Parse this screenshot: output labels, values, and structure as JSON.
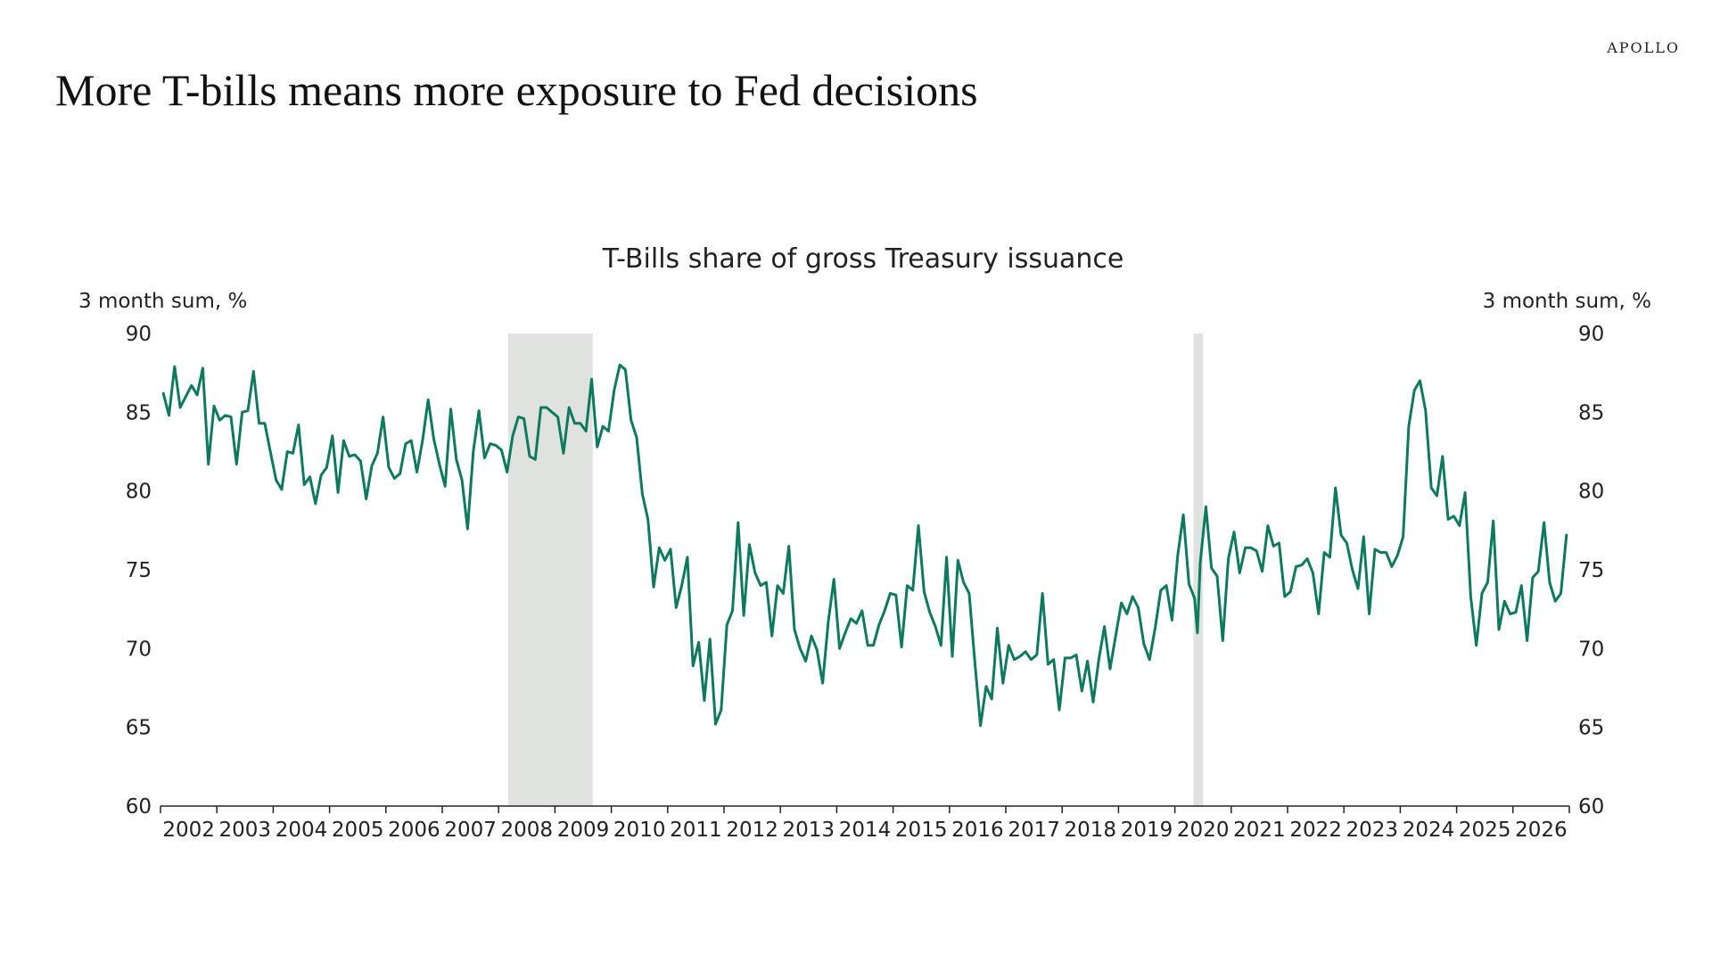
{
  "brand": "APOLLO",
  "page_title": "More T-bills means more exposure to Fed decisions",
  "colors": {
    "line": "#0d7a5f",
    "recession": "#e0e2e0",
    "axis": "#222222"
  },
  "chart_data": {
    "type": "line",
    "title": "T-Bills share of gross Treasury issuance",
    "y_left_label": "3 month sum, %",
    "y_right_label": "3 month sum, %",
    "ylim": [
      60,
      90
    ],
    "yticks": [
      60,
      65,
      70,
      75,
      80,
      85,
      90
    ],
    "xlim": [
      2001.75,
      2026.75
    ],
    "xtick_labels": [
      "2002",
      "2003",
      "2004",
      "2005",
      "2006",
      "2007",
      "2008",
      "2009",
      "2010",
      "2011",
      "2012",
      "2013",
      "2014",
      "2015",
      "2016",
      "2017",
      "2018",
      "2019",
      "2020",
      "2021",
      "2022",
      "2023",
      "2024",
      "2025",
      "2026"
    ],
    "grid": false,
    "legend": "none",
    "shaded_periods": [
      {
        "start": 2007.92,
        "end": 2009.42
      },
      {
        "start": 2020.08,
        "end": 2020.25
      }
    ],
    "series": [
      {
        "values": [
          [
            2001.8,
            86.2
          ],
          [
            2001.9,
            84.8
          ],
          [
            2002.0,
            87.9
          ],
          [
            2002.1,
            85.3
          ],
          [
            2002.2,
            86.0
          ],
          [
            2002.3,
            86.7
          ],
          [
            2002.4,
            86.1
          ],
          [
            2002.5,
            87.8
          ],
          [
            2002.6,
            81.7
          ],
          [
            2002.7,
            85.4
          ],
          [
            2002.8,
            84.5
          ],
          [
            2002.9,
            84.8
          ],
          [
            2003.0,
            84.7
          ],
          [
            2003.1,
            81.7
          ],
          [
            2003.2,
            85.0
          ],
          [
            2003.3,
            85.1
          ],
          [
            2003.4,
            87.6
          ],
          [
            2003.5,
            84.3
          ],
          [
            2003.6,
            84.3
          ],
          [
            2003.7,
            82.5
          ],
          [
            2003.8,
            80.7
          ],
          [
            2003.9,
            80.1
          ],
          [
            2004.0,
            82.5
          ],
          [
            2004.1,
            82.4
          ],
          [
            2004.2,
            84.2
          ],
          [
            2004.3,
            80.4
          ],
          [
            2004.4,
            80.9
          ],
          [
            2004.5,
            79.2
          ],
          [
            2004.6,
            81.0
          ],
          [
            2004.7,
            81.5
          ],
          [
            2004.8,
            83.5
          ],
          [
            2004.9,
            79.9
          ],
          [
            2005.0,
            83.2
          ],
          [
            2005.1,
            82.2
          ],
          [
            2005.2,
            82.3
          ],
          [
            2005.3,
            81.9
          ],
          [
            2005.4,
            79.5
          ],
          [
            2005.5,
            81.6
          ],
          [
            2005.6,
            82.4
          ],
          [
            2005.7,
            84.7
          ],
          [
            2005.8,
            81.5
          ],
          [
            2005.9,
            80.8
          ],
          [
            2006.0,
            81.1
          ],
          [
            2006.1,
            83.0
          ],
          [
            2006.2,
            83.2
          ],
          [
            2006.3,
            81.2
          ],
          [
            2006.4,
            83.2
          ],
          [
            2006.5,
            85.8
          ],
          [
            2006.6,
            83.3
          ],
          [
            2006.7,
            81.7
          ],
          [
            2006.8,
            80.3
          ],
          [
            2006.9,
            85.2
          ],
          [
            2007.0,
            82.0
          ],
          [
            2007.1,
            80.7
          ],
          [
            2007.2,
            77.6
          ],
          [
            2007.3,
            82.5
          ],
          [
            2007.4,
            85.1
          ],
          [
            2007.5,
            82.1
          ],
          [
            2007.6,
            83.0
          ],
          [
            2007.7,
            82.9
          ],
          [
            2007.8,
            82.6
          ],
          [
            2007.9,
            81.2
          ],
          [
            2008.0,
            83.5
          ],
          [
            2008.1,
            84.7
          ],
          [
            2008.2,
            84.6
          ],
          [
            2008.3,
            82.2
          ],
          [
            2008.4,
            82.0
          ],
          [
            2008.5,
            85.3
          ],
          [
            2008.6,
            85.3
          ],
          [
            2008.7,
            85.0
          ],
          [
            2008.8,
            84.7
          ],
          [
            2008.9,
            82.4
          ],
          [
            2009.0,
            85.3
          ],
          [
            2009.1,
            84.3
          ],
          [
            2009.2,
            84.3
          ],
          [
            2009.3,
            83.8
          ],
          [
            2009.4,
            87.1
          ],
          [
            2009.5,
            82.8
          ],
          [
            2009.6,
            84.1
          ],
          [
            2009.7,
            83.8
          ],
          [
            2009.8,
            86.4
          ],
          [
            2009.9,
            88.0
          ],
          [
            2010.0,
            87.7
          ],
          [
            2010.1,
            84.5
          ],
          [
            2010.2,
            83.4
          ],
          [
            2010.3,
            79.8
          ],
          [
            2010.4,
            78.2
          ],
          [
            2010.5,
            73.9
          ],
          [
            2010.6,
            76.4
          ],
          [
            2010.7,
            75.6
          ],
          [
            2010.8,
            76.3
          ],
          [
            2010.9,
            72.6
          ],
          [
            2011.0,
            74.0
          ],
          [
            2011.1,
            75.8
          ],
          [
            2011.2,
            68.9
          ],
          [
            2011.3,
            70.4
          ],
          [
            2011.4,
            66.7
          ],
          [
            2011.5,
            70.6
          ],
          [
            2011.6,
            65.2
          ],
          [
            2011.7,
            66.1
          ],
          [
            2011.8,
            71.5
          ],
          [
            2011.9,
            72.4
          ],
          [
            2012.0,
            78.0
          ],
          [
            2012.1,
            72.1
          ],
          [
            2012.2,
            76.6
          ],
          [
            2012.3,
            74.8
          ],
          [
            2012.4,
            74.0
          ],
          [
            2012.5,
            74.2
          ],
          [
            2012.6,
            70.8
          ],
          [
            2012.7,
            74.0
          ],
          [
            2012.8,
            73.5
          ],
          [
            2012.9,
            76.5
          ],
          [
            2013.0,
            71.2
          ],
          [
            2013.1,
            70.0
          ],
          [
            2013.2,
            69.2
          ],
          [
            2013.3,
            70.8
          ],
          [
            2013.4,
            69.9
          ],
          [
            2013.5,
            67.8
          ],
          [
            2013.6,
            71.7
          ],
          [
            2013.7,
            74.4
          ],
          [
            2013.8,
            70.0
          ],
          [
            2013.9,
            71.0
          ],
          [
            2014.0,
            71.9
          ],
          [
            2014.1,
            71.6
          ],
          [
            2014.2,
            72.4
          ],
          [
            2014.3,
            70.2
          ],
          [
            2014.4,
            70.2
          ],
          [
            2014.5,
            71.5
          ],
          [
            2014.6,
            72.4
          ],
          [
            2014.7,
            73.5
          ],
          [
            2014.8,
            73.4
          ],
          [
            2014.9,
            70.1
          ],
          [
            2015.0,
            74.0
          ],
          [
            2015.1,
            73.7
          ],
          [
            2015.2,
            77.8
          ],
          [
            2015.3,
            73.6
          ],
          [
            2015.4,
            72.3
          ],
          [
            2015.5,
            71.4
          ],
          [
            2015.6,
            70.2
          ],
          [
            2015.7,
            75.8
          ],
          [
            2015.8,
            69.5
          ],
          [
            2015.9,
            75.6
          ],
          [
            2016.0,
            74.2
          ],
          [
            2016.1,
            73.5
          ],
          [
            2016.2,
            69.2
          ],
          [
            2016.3,
            65.1
          ],
          [
            2016.4,
            67.6
          ],
          [
            2016.5,
            66.8
          ],
          [
            2016.6,
            71.3
          ],
          [
            2016.7,
            67.8
          ],
          [
            2016.8,
            70.2
          ],
          [
            2016.9,
            69.3
          ],
          [
            2017.0,
            69.5
          ],
          [
            2017.1,
            69.8
          ],
          [
            2017.2,
            69.3
          ],
          [
            2017.3,
            69.6
          ],
          [
            2017.4,
            73.5
          ],
          [
            2017.5,
            69.0
          ],
          [
            2017.6,
            69.3
          ],
          [
            2017.7,
            66.1
          ],
          [
            2017.8,
            69.4
          ],
          [
            2017.9,
            69.4
          ],
          [
            2018.0,
            69.6
          ],
          [
            2018.1,
            67.3
          ],
          [
            2018.2,
            69.2
          ],
          [
            2018.3,
            66.6
          ],
          [
            2018.4,
            69.3
          ],
          [
            2018.5,
            71.4
          ],
          [
            2018.6,
            68.7
          ],
          [
            2018.7,
            70.8
          ],
          [
            2018.8,
            72.9
          ],
          [
            2018.9,
            72.2
          ],
          [
            2019.0,
            73.3
          ],
          [
            2019.1,
            72.6
          ],
          [
            2019.2,
            70.3
          ],
          [
            2019.3,
            69.3
          ],
          [
            2019.4,
            71.3
          ],
          [
            2019.5,
            73.7
          ],
          [
            2019.6,
            74.0
          ],
          [
            2019.7,
            71.8
          ],
          [
            2019.8,
            75.9
          ],
          [
            2019.9,
            78.5
          ],
          [
            2020.0,
            74.1
          ],
          [
            2020.1,
            73.2
          ],
          [
            2020.15,
            71.0
          ],
          [
            2020.2,
            75.4
          ],
          [
            2020.3,
            79.0
          ],
          [
            2020.4,
            75.1
          ],
          [
            2020.5,
            74.6
          ],
          [
            2020.6,
            70.5
          ],
          [
            2020.7,
            75.7
          ],
          [
            2020.8,
            77.4
          ],
          [
            2020.9,
            74.8
          ],
          [
            2021.0,
            76.4
          ],
          [
            2021.1,
            76.4
          ],
          [
            2021.2,
            76.2
          ],
          [
            2021.3,
            74.9
          ],
          [
            2021.4,
            77.8
          ],
          [
            2021.5,
            76.5
          ],
          [
            2021.6,
            76.7
          ],
          [
            2021.7,
            73.3
          ],
          [
            2021.8,
            73.6
          ],
          [
            2021.9,
            75.2
          ],
          [
            2022.0,
            75.3
          ],
          [
            2022.1,
            75.7
          ],
          [
            2022.2,
            74.8
          ],
          [
            2022.3,
            72.2
          ],
          [
            2022.4,
            76.1
          ],
          [
            2022.5,
            75.8
          ],
          [
            2022.6,
            80.2
          ],
          [
            2022.7,
            77.2
          ],
          [
            2022.8,
            76.7
          ],
          [
            2022.9,
            75.0
          ],
          [
            2023.0,
            73.8
          ],
          [
            2023.1,
            77.1
          ],
          [
            2023.2,
            72.2
          ],
          [
            2023.3,
            76.3
          ],
          [
            2023.4,
            76.1
          ],
          [
            2023.5,
            76.1
          ],
          [
            2023.6,
            75.2
          ],
          [
            2023.7,
            75.9
          ],
          [
            2023.8,
            77.1
          ],
          [
            2023.9,
            84.1
          ],
          [
            2024.0,
            86.4
          ],
          [
            2024.1,
            87.0
          ],
          [
            2024.2,
            85.1
          ],
          [
            2024.3,
            80.2
          ],
          [
            2024.4,
            79.7
          ],
          [
            2024.5,
            82.2
          ],
          [
            2024.6,
            78.2
          ],
          [
            2024.7,
            78.4
          ],
          [
            2024.8,
            77.8
          ],
          [
            2024.9,
            79.9
          ],
          [
            2025.0,
            73.3
          ],
          [
            2025.1,
            70.2
          ],
          [
            2025.2,
            73.5
          ],
          [
            2025.3,
            74.2
          ],
          [
            2025.4,
            78.1
          ],
          [
            2025.5,
            71.2
          ],
          [
            2025.6,
            73.0
          ],
          [
            2025.7,
            72.2
          ],
          [
            2025.8,
            72.3
          ],
          [
            2025.9,
            74.0
          ],
          [
            2026.0,
            70.5
          ],
          [
            2026.1,
            74.5
          ],
          [
            2026.2,
            74.9
          ],
          [
            2026.3,
            78.0
          ],
          [
            2026.4,
            74.2
          ],
          [
            2026.5,
            73.0
          ],
          [
            2026.6,
            73.5
          ],
          [
            2026.7,
            77.2
          ]
        ]
      }
    ]
  }
}
